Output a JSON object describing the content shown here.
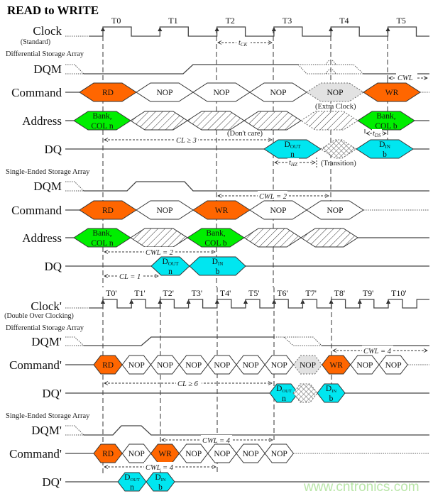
{
  "title": "READ to WRITE",
  "colors": {
    "command": "#ff6600",
    "nop": "#ffffff",
    "extra_nop": "#e2e2e2",
    "address": "#00ee00",
    "data": "#00e6f0",
    "watermark": "#b9e6a8"
  },
  "standard": {
    "clock_label": "Clock",
    "clock_sub": "(Standard)",
    "clock_ticks": [
      "T0",
      "T1",
      "T2",
      "T3",
      "T4",
      "T5"
    ],
    "differential": {
      "group_label": "Differential Storage Array",
      "dqm_label": "DQM",
      "command_label": "Command",
      "address_label": "Address",
      "dq_label": "DQ",
      "command": [
        {
          "kind": "command",
          "text": "RD"
        },
        {
          "kind": "nop",
          "text": "NOP"
        },
        {
          "kind": "nop",
          "text": "NOP"
        },
        {
          "kind": "nop",
          "text": "NOP"
        },
        {
          "kind": "extra",
          "text": "NOP"
        },
        {
          "kind": "command",
          "text": "WR"
        }
      ],
      "address": [
        {
          "kind": "addr",
          "text": "Bank,",
          "line2": "COL n"
        },
        {
          "kind": "hatch"
        },
        {
          "kind": "hatch"
        },
        {
          "kind": "hatch"
        },
        {
          "kind": "hatch-dotted"
        },
        {
          "kind": "addr",
          "text": "Bank,",
          "line2": "COL b"
        }
      ],
      "dq": [
        {
          "kind": "data",
          "text": "D",
          "sub": "OUT",
          "line2": "n"
        },
        {
          "kind": "xhatch"
        },
        {
          "kind": "data",
          "text": "D",
          "sub": "IN",
          "line2": "b"
        }
      ],
      "annotations": {
        "tck": "t",
        "tck_sub": "CK",
        "cl": "CL ≥ 3",
        "thz": "t",
        "thz_sub": "HZ",
        "transition": "(Transition)",
        "dont_care": "(Don't care)",
        "extra_clock": "(Extra Clock)",
        "tds": "t",
        "tds_sub": "DS",
        "cwl": "CWL"
      }
    },
    "single_ended": {
      "group_label": "Single-Ended Storage Array",
      "dqm_label": "DQM",
      "command_label": "Command",
      "address_label": "Address",
      "dq_label": "DQ",
      "command": [
        {
          "kind": "command",
          "text": "RD"
        },
        {
          "kind": "nop",
          "text": "NOP"
        },
        {
          "kind": "command",
          "text": "WR"
        },
        {
          "kind": "nop",
          "text": "NOP"
        },
        {
          "kind": "nop",
          "text": "NOP"
        }
      ],
      "address": [
        {
          "kind": "addr",
          "text": "Bank,",
          "line2": "COL n"
        },
        {
          "kind": "hatch"
        },
        {
          "kind": "addr",
          "text": "Bank,",
          "line2": "COL b"
        },
        {
          "kind": "hatch"
        },
        {
          "kind": "hatch"
        }
      ],
      "dq": [
        {
          "kind": "data",
          "text": "D",
          "sub": "OUT",
          "line2": "n"
        },
        {
          "kind": "data",
          "text": "D",
          "sub": "IN",
          "line2": "b"
        }
      ],
      "annotations": {
        "cwl_top": "CWL = 2",
        "cwl_bottom": "CWL = 2",
        "cl": "CL = 1"
      }
    }
  },
  "double": {
    "clock_label": "Clock'",
    "clock_sub": "(Double Over Clocking)",
    "clock_ticks": [
      "T0'",
      "T1'",
      "T2'",
      "T3'",
      "T4'",
      "T5'",
      "T6'",
      "T7'",
      "T8'",
      "T9'",
      "T10'"
    ],
    "differential": {
      "group_label": "Differential Storage Array",
      "dqm_label": "DQM'",
      "command_label": "Command'",
      "dq_label": "DQ'",
      "command": [
        {
          "kind": "command",
          "text": "RD"
        },
        {
          "kind": "nop",
          "text": "NOP"
        },
        {
          "kind": "nop",
          "text": "NOP"
        },
        {
          "kind": "nop",
          "text": "NOP"
        },
        {
          "kind": "nop",
          "text": "NOP"
        },
        {
          "kind": "nop",
          "text": "NOP"
        },
        {
          "kind": "nop",
          "text": "NOP"
        },
        {
          "kind": "extra",
          "text": "NOP"
        },
        {
          "kind": "command",
          "text": "WR"
        },
        {
          "kind": "nop",
          "text": "NOP"
        },
        {
          "kind": "nop",
          "text": "NOP"
        }
      ],
      "dq": [
        {
          "kind": "data",
          "text": "D",
          "sub": "OUT",
          "line2": "n"
        },
        {
          "kind": "xhatch"
        },
        {
          "kind": "data",
          "text": "D",
          "sub": "IN",
          "line2": "b"
        }
      ],
      "annotations": {
        "cwl": "CWL = 4",
        "cl": "CL ≥ 6"
      }
    },
    "single_ended": {
      "group_label": "Single-Ended Storage Array",
      "dqm_label": "DQM'",
      "command_label": "Command'",
      "dq_label": "DQ'",
      "command": [
        {
          "kind": "command",
          "text": "RD"
        },
        {
          "kind": "nop",
          "text": "NOP"
        },
        {
          "kind": "command",
          "text": "WR"
        },
        {
          "kind": "nop",
          "text": "NOP"
        },
        {
          "kind": "nop",
          "text": "NOP"
        },
        {
          "kind": "nop",
          "text": "NOP"
        },
        {
          "kind": "nop",
          "text": "NOP"
        }
      ],
      "dq": [
        {
          "kind": "data",
          "text": "D",
          "sub": "OUT",
          "line2": "n"
        },
        {
          "kind": "data",
          "text": "D",
          "sub": "IN",
          "line2": "b"
        }
      ],
      "annotations": {
        "cwl_top": "CWL = 4",
        "cwl_bottom": "CWL = 4"
      }
    }
  },
  "watermark": "www.cntronics.com"
}
